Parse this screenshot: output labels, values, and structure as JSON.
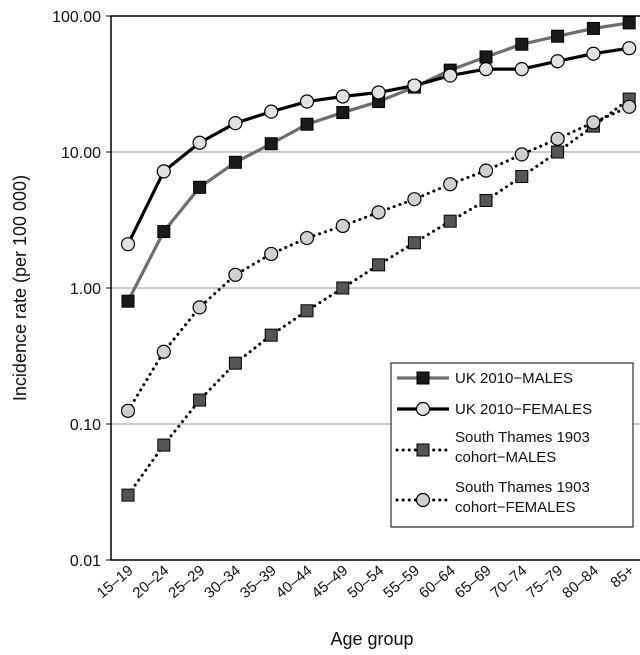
{
  "chart_data": {
    "type": "line",
    "yscale": "log",
    "ylim": [
      0.01,
      100
    ],
    "ylabel": "Incidence rate (per 100 000)",
    "xlabel": "Age group",
    "y_ticks": [
      "100.00",
      "10.00",
      "1.00",
      "0.10",
      "0.01"
    ],
    "y_tick_values": [
      100,
      10,
      1,
      0.1,
      0.01
    ],
    "grid": true,
    "legend_position": "lower-right",
    "categories": [
      "15–19",
      "20–24",
      "25–29",
      "30–34",
      "35–39",
      "40–44",
      "45–49",
      "50–54",
      "55–59",
      "60–64",
      "65–69",
      "70–74",
      "75–79",
      "80–84",
      "85+"
    ],
    "series": [
      {
        "name": "UK 2010−MALES",
        "line": "solid",
        "marker": "square",
        "color": "#6e6e6e",
        "marker_fill": "#1a1a1a",
        "values": [
          0.8,
          2.6,
          5.5,
          8.4,
          11.5,
          16,
          19.5,
          23.5,
          30,
          40,
          50,
          62,
          71,
          81,
          89
        ]
      },
      {
        "name": "UK 2010−FEMALES",
        "line": "solid",
        "marker": "circle",
        "color": "#000000",
        "marker_fill": "#e2e2e2",
        "values": [
          2.1,
          7.2,
          11.7,
          16.3,
          19.8,
          23.5,
          25.6,
          27.4,
          30.8,
          36.5,
          40.7,
          40.7,
          46.5,
          52.8,
          58
        ]
      },
      {
        "name": "South Thames 1903 cohort−MALES",
        "line": "dotted",
        "marker": "square",
        "color": "#000000",
        "marker_fill": "#555555",
        "values": [
          0.03,
          0.07,
          0.15,
          0.28,
          0.45,
          0.68,
          1.0,
          1.48,
          2.15,
          3.1,
          4.4,
          6.6,
          10,
          15.5,
          24.5
        ]
      },
      {
        "name": "South Thames 1903 cohort−FEMALES",
        "line": "dotted",
        "marker": "circle",
        "color": "#000000",
        "marker_fill": "#d0d0d0",
        "values": [
          0.125,
          0.34,
          0.72,
          1.25,
          1.78,
          2.33,
          2.86,
          3.6,
          4.5,
          5.8,
          7.3,
          9.6,
          12.5,
          16.5,
          21.5
        ]
      }
    ],
    "legend": [
      {
        "lines": [
          "UK 2010−MALES"
        ]
      },
      {
        "lines": [
          "UK 2010−FEMALES"
        ]
      },
      {
        "lines": [
          "South Thames 1903",
          "cohort−MALES"
        ]
      },
      {
        "lines": [
          "South Thames 1903",
          "cohort−FEMALES"
        ]
      }
    ]
  }
}
